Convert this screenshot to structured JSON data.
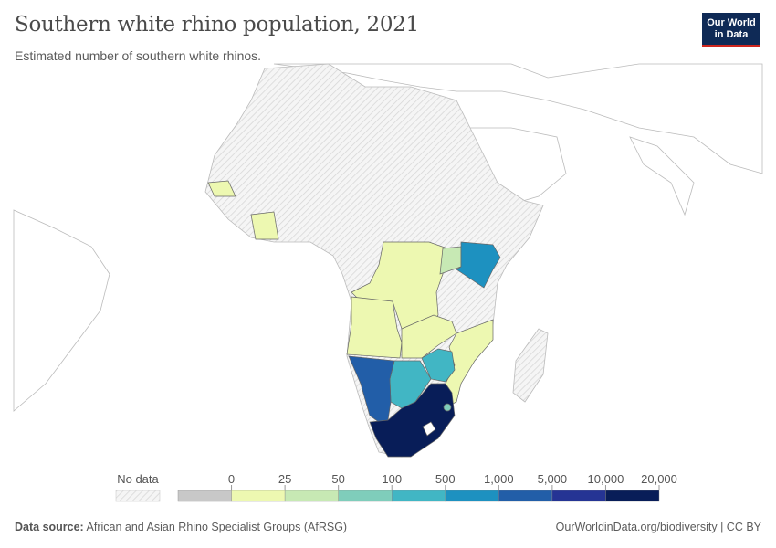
{
  "header": {
    "title": "Southern white rhino population, 2021",
    "subtitle": "Estimated number of southern white rhinos.",
    "logo": "Our World in Data"
  },
  "legend": {
    "no_data_label": "No data",
    "no_data_color": "hatched",
    "bins": [
      {
        "from": "",
        "to": "0",
        "color": "#c8c8c8"
      },
      {
        "from": "0",
        "to": "25",
        "color": "#edf8b1"
      },
      {
        "from": "25",
        "to": "50",
        "color": "#c7e9b4"
      },
      {
        "from": "50",
        "to": "100",
        "color": "#7fcdbb"
      },
      {
        "from": "100",
        "to": "500",
        "color": "#41b6c4"
      },
      {
        "from": "500",
        "to": "1,000",
        "color": "#1d91c0"
      },
      {
        "from": "1,000",
        "to": "5,000",
        "color": "#225ea8"
      },
      {
        "from": "5,000",
        "to": "10,000",
        "color": "#253494"
      },
      {
        "from": "10,000",
        "to": "20,000",
        "color": "#081d58"
      }
    ],
    "tick_labels": [
      "0",
      "25",
      "50",
      "100",
      "500",
      "1,000",
      "5,000",
      "10,000",
      "20,000"
    ]
  },
  "map_data": {
    "South Africa": "10,000–20,000",
    "Namibia": "1,000–5,000",
    "Kenya": "500–1,000",
    "Botswana": "100–500",
    "Zimbabwe": "100–500",
    "Eswatini": "50–100",
    "Uganda": "25–50",
    "Democratic Republic of Congo": "0–25",
    "Angola": "0–25",
    "Zambia": "0–25",
    "Mozambique": "0–25",
    "Senegal": "0–25",
    "Cote d'Ivoire": "0–25"
  },
  "footer": {
    "source_label": "Data source:",
    "source": "African and Asian Rhino Specialist Groups (AfRSG)",
    "url": "OurWorldinData.org/biodiversity",
    "license": "CC BY"
  }
}
